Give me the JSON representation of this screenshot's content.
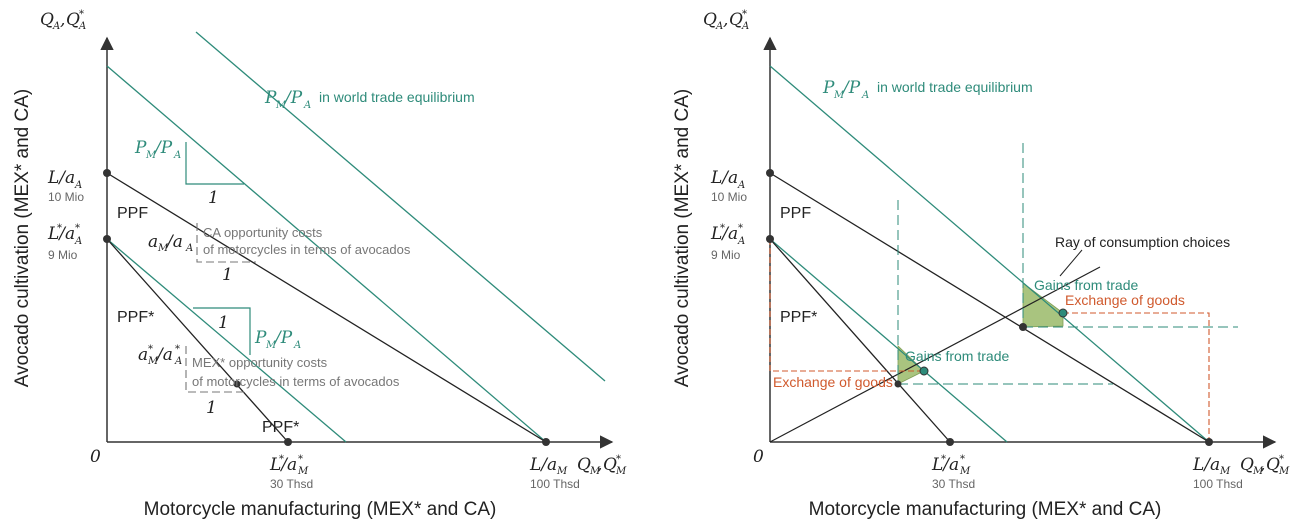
{
  "left_panel": {
    "y_axis_label_main": "Q",
    "y_axis_label_sub1": "A",
    "y_axis_label_sep": ", ",
    "y_axis_label_main2": "Q",
    "y_axis_label_sub2": "A",
    "y_axis_label_sup2": "*",
    "y_axis_title": "Avocado cultivation (MEX* and CA)",
    "x_axis_title": "Motorcycle manufacturing (MEX* and CA)",
    "origin": "0",
    "x_axis_label_main": "Q",
    "x_axis_label_sub1": "M",
    "x_axis_label_main2": "Q",
    "x_axis_label_sub2": "M",
    "x_axis_label_sup2": "*",
    "y_intercept_ca": "L/a",
    "y_intercept_ca_sub": "A",
    "y_intercept_ca_value": "10 Mio",
    "y_intercept_mex": "L/a",
    "y_intercept_mex_pre": "*",
    "y_intercept_mex_sub": "A",
    "y_intercept_mex_sup": "*",
    "y_intercept_mex_value": "9 Mio",
    "x_intercept_mex": "L/a",
    "x_intercept_mex_sub": "M",
    "x_intercept_mex_value": "30 Thsd",
    "x_intercept_ca": "L/a",
    "x_intercept_ca_sub": "M",
    "x_intercept_ca_value": "100 Thsd",
    "ppf_ca": "PPF",
    "ppf_mex": "PPF*",
    "ppf_mex2": "PPF*",
    "price_ratio": "P",
    "price_ratio_sub1": "M",
    "price_ratio_sep": "/P",
    "price_ratio_sub2": "A",
    "world_eq_text": "in world trade equilibrium",
    "one": "1",
    "ca_cost_ratio": "a",
    "ca_cost_sub1": "M",
    "ca_cost_sep": "/a",
    "ca_cost_sub2": "A",
    "ca_cost_text_1": "CA opportunity costs",
    "ca_cost_text_2": "of motorcycles in terms of avocados",
    "mex_cost_text_1": "MEX* opportunity costs",
    "mex_cost_text_2": "of motorcycles in terms of avocados"
  },
  "right_panel": {
    "y_axis_title": "Avocado cultivation (MEX* and CA)",
    "x_axis_title": "Motorcycle manufacturing (MEX* and CA)",
    "origin": "0",
    "y_intercept_ca_value": "10 Mio",
    "y_intercept_mex_value": "9 Mio",
    "x_intercept_mex_value": "30 Thsd",
    "x_intercept_ca_value": "100 Thsd",
    "ppf_ca": "PPF",
    "ppf_mex": "PPF*",
    "ray_label": "Ray of consumption choices",
    "gains_1": "Gains from trade",
    "gains_2": "Gains from trade",
    "exchange_1": "Exchange of goods",
    "exchange_2": "Exchange of goods",
    "world_eq_text": "in world trade equilibrium"
  },
  "colors": {
    "teal": "#2e8b7a",
    "orange": "#d05a2e",
    "green_fill": "#a9c47f",
    "axis": "#333333"
  }
}
